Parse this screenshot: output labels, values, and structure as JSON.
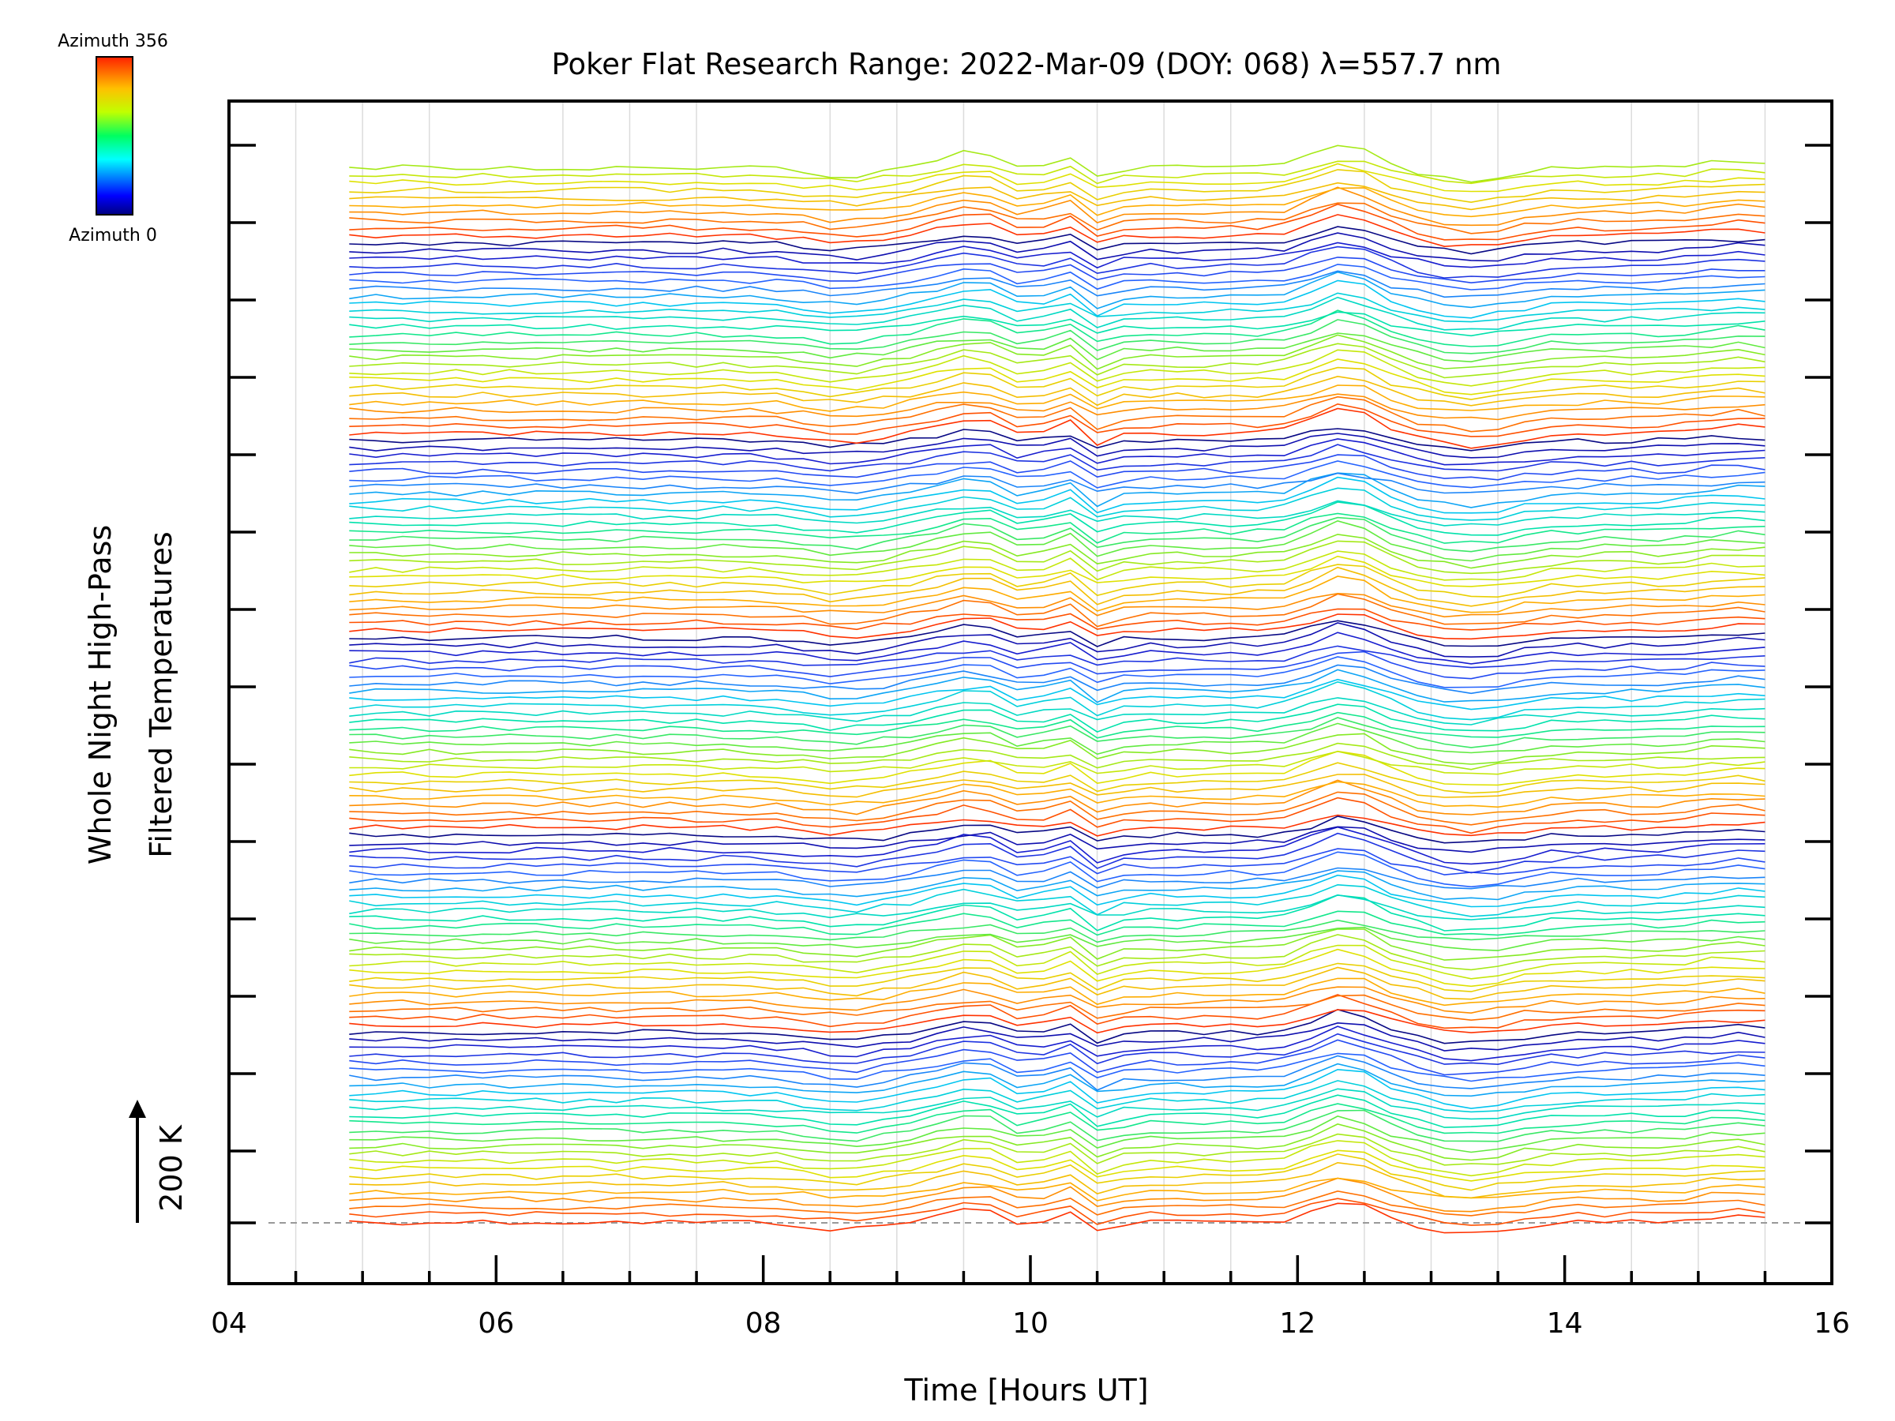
{
  "chart_data": {
    "type": "line",
    "title": "Poker Flat Research Range: 2022-Mar-09 (DOY: 068) λ=557.7 nm",
    "xlabel": "Time [Hours UT]",
    "ylabel_lines": [
      "Whole Night High-Pass",
      "Filtered Temperatures"
    ],
    "xlim": [
      4,
      16
    ],
    "x_ticks": [
      "04",
      "06",
      "08",
      "10",
      "12",
      "14",
      "16"
    ],
    "x_range_data": [
      4.9,
      15.6
    ],
    "grid": "vertical",
    "scale_bar_label": "200 K",
    "colorbar": {
      "top_label": "Azimuth 356",
      "bottom_label": "Azimuth 0",
      "colormap": "rainbow"
    },
    "line_count": 140,
    "series_note": "Stacked high-pass filtered temperature traces, one per azimuth, colored by azimuth; common perturbation peaks near 09.6, 10.3 and 12.3 UT and a minimum near 13.3 UT."
  }
}
